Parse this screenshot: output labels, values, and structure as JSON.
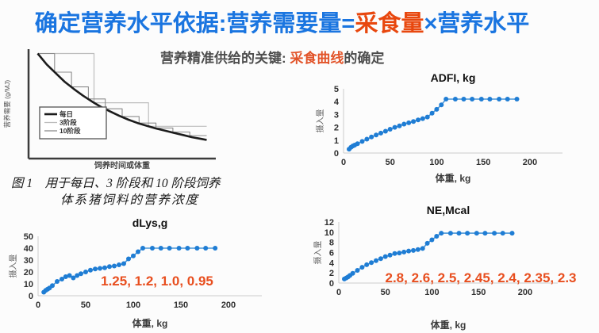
{
  "title": {
    "part1": "确定营养水平依据:营养需要量=",
    "part2": "采食量",
    "part3": "×营养水平"
  },
  "subtitle": {
    "part1": "营养精准供给的关键: ",
    "part2": "采食曲线",
    "part3": "的确定"
  },
  "figure1": {
    "caption_line1": "图 1　用于每日、3 阶段和 10 阶段饲养",
    "caption_line2": "体系猪饲料的营养浓度"
  },
  "colors": {
    "title_blue": "#1a75e0",
    "title_red": "#e8470e",
    "subtitle_orange": "#e2542a",
    "marker_blue": "#1f7dd4",
    "line_blue": "#4a96d8",
    "annotation_red": "#e84e1e"
  },
  "chart_data": [
    {
      "id": "fig1",
      "type": "line",
      "title": "",
      "xlabel": "饲养时间或体重",
      "ylabel": "营养需要 (g/MJ)",
      "small": true,
      "xlim": [
        0,
        1.03
      ],
      "ylim": [
        0,
        1
      ],
      "xticks": [],
      "yticks": [],
      "axis": {
        "color": "#3c3c3c",
        "width": 2.5
      },
      "legend": {
        "items": [
          {
            "label": "每日",
            "color": "#1c1c1c",
            "width": 2.6
          },
          {
            "label": "3阶段",
            "color": "#bdbdbd",
            "width": 1.3
          },
          {
            "label": "10阶段",
            "color": "#8c8c8c",
            "width": 1.3
          }
        ]
      },
      "series": [
        {
          "name": "3阶段",
          "color": "#bdbdbd",
          "width": 1.2,
          "points": [
            [
              0.05,
              0.96
            ],
            [
              0.36,
              0.96
            ],
            [
              0.36,
              0.51
            ],
            [
              0.66,
              0.51
            ],
            [
              0.66,
              0.295
            ],
            [
              0.98,
              0.295
            ]
          ]
        },
        {
          "name": "10阶段",
          "color": "#8c8c8c",
          "width": 1.1,
          "points": [
            [
              0.05,
              0.96
            ],
            [
              0.143,
              0.96
            ],
            [
              0.143,
              0.79
            ],
            [
              0.236,
              0.79
            ],
            [
              0.236,
              0.655
            ],
            [
              0.329,
              0.655
            ],
            [
              0.329,
              0.545
            ],
            [
              0.422,
              0.545
            ],
            [
              0.422,
              0.455
            ],
            [
              0.515,
              0.455
            ],
            [
              0.515,
              0.385
            ],
            [
              0.608,
              0.385
            ],
            [
              0.608,
              0.325
            ],
            [
              0.701,
              0.325
            ],
            [
              0.701,
              0.28
            ],
            [
              0.794,
              0.28
            ],
            [
              0.794,
              0.243
            ],
            [
              0.887,
              0.243
            ],
            [
              0.887,
              0.21
            ],
            [
              0.98,
              0.21
            ]
          ]
        },
        {
          "name": "每日",
          "color": "#1c1c1c",
          "width": 2.6,
          "points": [
            [
              0.05,
              0.96
            ],
            [
              0.1,
              0.86
            ],
            [
              0.15,
              0.78
            ],
            [
              0.2,
              0.7
            ],
            [
              0.25,
              0.635
            ],
            [
              0.3,
              0.575
            ],
            [
              0.35,
              0.52
            ],
            [
              0.4,
              0.47
            ],
            [
              0.45,
              0.43
            ],
            [
              0.5,
              0.39
            ],
            [
              0.55,
              0.355
            ],
            [
              0.6,
              0.325
            ],
            [
              0.65,
              0.3
            ],
            [
              0.7,
              0.275
            ],
            [
              0.75,
              0.255
            ],
            [
              0.8,
              0.235
            ],
            [
              0.85,
              0.215
            ],
            [
              0.9,
              0.195
            ],
            [
              0.95,
              0.18
            ],
            [
              0.98,
              0.17
            ]
          ]
        }
      ]
    },
    {
      "id": "adfi",
      "type": "line",
      "title": "ADFI, kg",
      "xlabel": "体重, kg",
      "ylabel": "摄入量",
      "xlim": [
        0,
        235
      ],
      "ylim": [
        0,
        5
      ],
      "xticks": [
        0,
        50,
        100,
        150,
        200
      ],
      "yticks": [
        0,
        1,
        2,
        3,
        4,
        5
      ],
      "axis": {
        "color": "#cccccc",
        "width": 1
      },
      "series": [
        {
          "name": "ADFI",
          "color": "#4a96d8",
          "width": 1.6,
          "marker": {
            "r": 3,
            "color": "#1f7dd4"
          },
          "points": [
            [
              6,
              0.3
            ],
            [
              8,
              0.45
            ],
            [
              10,
              0.55
            ],
            [
              12,
              0.62
            ],
            [
              15,
              0.72
            ],
            [
              20,
              0.9
            ],
            [
              25,
              1.08
            ],
            [
              30,
              1.25
            ],
            [
              35,
              1.4
            ],
            [
              40,
              1.55
            ],
            [
              45,
              1.7
            ],
            [
              50,
              1.85
            ],
            [
              55,
              2.0
            ],
            [
              60,
              2.12
            ],
            [
              65,
              2.25
            ],
            [
              70,
              2.35
            ],
            [
              75,
              2.45
            ],
            [
              80,
              2.58
            ],
            [
              85,
              2.68
            ],
            [
              90,
              2.8
            ],
            [
              95,
              3.1
            ],
            [
              100,
              3.4
            ],
            [
              105,
              3.75
            ],
            [
              110,
              4.2
            ],
            [
              120,
              4.2
            ],
            [
              129,
              4.2
            ],
            [
              138,
              4.2
            ],
            [
              148,
              4.2
            ],
            [
              157,
              4.2
            ],
            [
              167,
              4.2
            ],
            [
              176,
              4.2
            ],
            [
              186,
              4.2
            ]
          ]
        }
      ]
    },
    {
      "id": "dlys",
      "type": "line",
      "title": "dLys,g",
      "xlabel": "体重, kg",
      "ylabel": "摄入量",
      "xlim": [
        0,
        235
      ],
      "ylim": [
        0,
        50
      ],
      "xticks": [
        0,
        50,
        100,
        150,
        200
      ],
      "yticks": [
        0,
        10,
        20,
        30,
        40,
        50
      ],
      "axis": {
        "color": "#cccccc",
        "width": 1
      },
      "annotation": {
        "text": "1.25,  1.2,  1.0,  0.95",
        "color": "#e84e1e"
      },
      "series": [
        {
          "name": "dLys",
          "color": "#4a96d8",
          "width": 1.6,
          "marker": {
            "r": 3,
            "color": "#1f7dd4"
          },
          "points": [
            [
              6,
              3
            ],
            [
              8,
              4.5
            ],
            [
              10,
              5.5
            ],
            [
              12,
              6.5
            ],
            [
              15,
              8.5
            ],
            [
              20,
              12
            ],
            [
              25,
              14
            ],
            [
              29,
              16
            ],
            [
              33,
              17
            ],
            [
              37,
              15
            ],
            [
              41,
              17
            ],
            [
              45,
              18.5
            ],
            [
              50,
              20
            ],
            [
              55,
              21.5
            ],
            [
              60,
              22.5
            ],
            [
              65,
              23
            ],
            [
              70,
              23.5
            ],
            [
              75,
              24.5
            ],
            [
              80,
              25
            ],
            [
              85,
              26
            ],
            [
              90,
              27
            ],
            [
              95,
              31
            ],
            [
              100,
              33.5
            ],
            [
              105,
              37
            ],
            [
              110,
              40
            ],
            [
              120,
              40
            ],
            [
              129,
              40
            ],
            [
              138,
              40
            ],
            [
              148,
              40
            ],
            [
              157,
              40
            ],
            [
              167,
              40
            ],
            [
              176,
              40
            ],
            [
              186,
              40
            ]
          ]
        }
      ]
    },
    {
      "id": "ne",
      "type": "line",
      "title": "NE,Mcal",
      "xlabel": "体重, kg",
      "ylabel": "摄入量",
      "xlim": [
        0,
        235
      ],
      "ylim": [
        0,
        12
      ],
      "xticks": [
        0,
        50,
        100,
        150,
        200
      ],
      "yticks": [
        0,
        2,
        4,
        6,
        8,
        10,
        12
      ],
      "axis": {
        "color": "#cccccc",
        "width": 1
      },
      "annotation": {
        "text": "2.8,  2.6,  2.5,  2.45,  2.4,  2.35,  2.3",
        "color": "#e84e1e"
      },
      "series": [
        {
          "name": "NE",
          "color": "#4a96d8",
          "width": 1.6,
          "marker": {
            "r": 3,
            "color": "#1f7dd4"
          },
          "points": [
            [
              6,
              0.8
            ],
            [
              8,
              1.0
            ],
            [
              10,
              1.2
            ],
            [
              12,
              1.5
            ],
            [
              15,
              1.9
            ],
            [
              20,
              2.5
            ],
            [
              25,
              3.1
            ],
            [
              30,
              3.6
            ],
            [
              35,
              4.0
            ],
            [
              40,
              4.4
            ],
            [
              45,
              4.8
            ],
            [
              50,
              5.2
            ],
            [
              55,
              5.5
            ],
            [
              60,
              5.8
            ],
            [
              65,
              5.9
            ],
            [
              70,
              6.1
            ],
            [
              75,
              6.3
            ],
            [
              80,
              6.4
            ],
            [
              85,
              6.6
            ],
            [
              90,
              6.8
            ],
            [
              95,
              7.8
            ],
            [
              100,
              8.5
            ],
            [
              105,
              9.2
            ],
            [
              110,
              9.8
            ],
            [
              120,
              9.8
            ],
            [
              129,
              9.8
            ],
            [
              138,
              9.8
            ],
            [
              148,
              9.8
            ],
            [
              157,
              9.8
            ],
            [
              167,
              9.8
            ],
            [
              176,
              9.8
            ],
            [
              186,
              9.8
            ]
          ]
        }
      ]
    }
  ]
}
